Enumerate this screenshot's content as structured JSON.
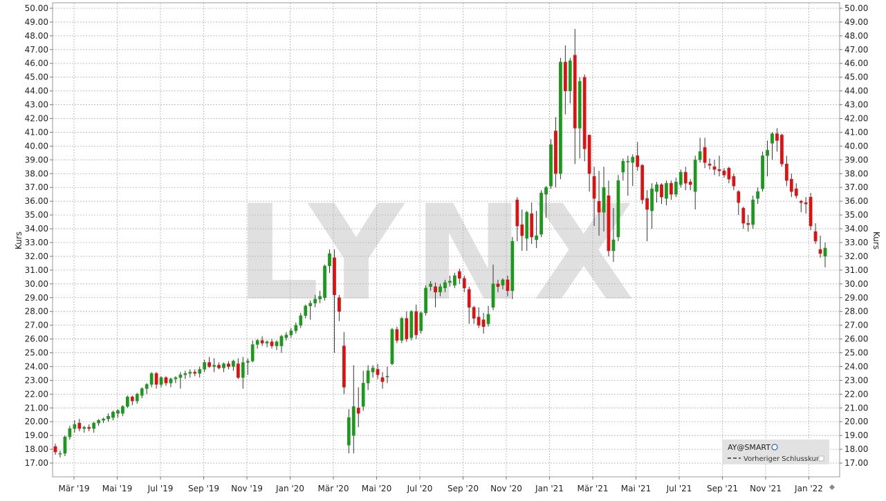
{
  "chart_data": {
    "type": "candlestick",
    "watermark": "LYNX",
    "ylabel_left": "Kurs",
    "ylabel_right": "Kurs",
    "ylim": [
      16.0,
      50.4
    ],
    "yticks": [
      "17.00",
      "18.00",
      "19.00",
      "20.00",
      "21.00",
      "22.00",
      "23.00",
      "24.00",
      "25.00",
      "26.00",
      "27.00",
      "28.00",
      "29.00",
      "30.00",
      "31.00",
      "32.00",
      "33.00",
      "34.00",
      "35.00",
      "36.00",
      "37.00",
      "38.00",
      "39.00",
      "40.00",
      "41.00",
      "42.00",
      "43.00",
      "44.00",
      "45.00",
      "46.00",
      "47.00",
      "48.00",
      "49.00",
      "50.00"
    ],
    "xticks": [
      "Mär '19",
      "Mai '19",
      "Jul '19",
      "Sep '19",
      "Nov '19",
      "Jan '20",
      "Mär '20",
      "Mai '20",
      "Jul '20",
      "Sep '20",
      "Nov '20",
      "Jan '21",
      "Mär '21",
      "Mai '21",
      "Jul '21",
      "Sep '21",
      "Nov '21",
      "Jan '22"
    ],
    "grid": true,
    "legend": {
      "position": "bottom-right",
      "symbol": "AY@SMART",
      "prev_close_label": "Vorheriger Schlusskurs"
    },
    "colors": {
      "up": "#1a9a1a",
      "down": "#e01010",
      "grid": "#b0b0b0",
      "watermark": "#e0e0e0"
    },
    "candles": [
      {
        "o": 18.2,
        "h": 18.4,
        "l": 17.6,
        "c": 17.8
      },
      {
        "o": 17.7,
        "h": 17.9,
        "l": 17.4,
        "c": 17.7
      },
      {
        "o": 17.7,
        "h": 19.0,
        "l": 17.5,
        "c": 18.9
      },
      {
        "o": 18.9,
        "h": 19.7,
        "l": 18.7,
        "c": 19.5
      },
      {
        "o": 19.5,
        "h": 20.1,
        "l": 19.2,
        "c": 19.8
      },
      {
        "o": 19.9,
        "h": 20.2,
        "l": 19.3,
        "c": 19.5
      },
      {
        "o": 19.5,
        "h": 19.7,
        "l": 19.2,
        "c": 19.6
      },
      {
        "o": 19.6,
        "h": 19.8,
        "l": 19.3,
        "c": 19.5
      },
      {
        "o": 19.5,
        "h": 20.0,
        "l": 19.2,
        "c": 19.9
      },
      {
        "o": 19.9,
        "h": 20.2,
        "l": 19.7,
        "c": 20.1
      },
      {
        "o": 20.1,
        "h": 20.3,
        "l": 19.9,
        "c": 20.2
      },
      {
        "o": 20.2,
        "h": 20.6,
        "l": 20.0,
        "c": 20.4
      },
      {
        "o": 20.3,
        "h": 20.8,
        "l": 20.1,
        "c": 20.7
      },
      {
        "o": 20.6,
        "h": 20.9,
        "l": 20.3,
        "c": 20.8
      },
      {
        "o": 20.6,
        "h": 21.2,
        "l": 20.4,
        "c": 21.1
      },
      {
        "o": 21.1,
        "h": 21.9,
        "l": 21.0,
        "c": 21.8
      },
      {
        "o": 21.8,
        "h": 21.9,
        "l": 21.2,
        "c": 21.5
      },
      {
        "o": 21.5,
        "h": 22.1,
        "l": 21.3,
        "c": 22.0
      },
      {
        "o": 21.9,
        "h": 22.5,
        "l": 21.7,
        "c": 22.4
      },
      {
        "o": 22.4,
        "h": 22.8,
        "l": 22.0,
        "c": 22.7
      },
      {
        "o": 22.7,
        "h": 23.6,
        "l": 22.5,
        "c": 23.5
      },
      {
        "o": 23.5,
        "h": 23.6,
        "l": 22.4,
        "c": 22.7
      },
      {
        "o": 22.7,
        "h": 23.3,
        "l": 22.5,
        "c": 23.2
      },
      {
        "o": 23.2,
        "h": 23.3,
        "l": 22.6,
        "c": 22.8
      },
      {
        "o": 22.8,
        "h": 23.2,
        "l": 22.5,
        "c": 23.1
      },
      {
        "o": 23.1,
        "h": 23.3,
        "l": 22.8,
        "c": 23.2
      },
      {
        "o": 23.2,
        "h": 23.6,
        "l": 22.4,
        "c": 23.4
      },
      {
        "o": 23.4,
        "h": 23.7,
        "l": 23.1,
        "c": 23.5
      },
      {
        "o": 23.5,
        "h": 23.8,
        "l": 23.2,
        "c": 23.6
      },
      {
        "o": 23.6,
        "h": 23.8,
        "l": 23.3,
        "c": 23.5
      },
      {
        "o": 23.5,
        "h": 24.0,
        "l": 23.2,
        "c": 23.8
      },
      {
        "o": 23.8,
        "h": 24.5,
        "l": 23.6,
        "c": 24.3
      },
      {
        "o": 24.3,
        "h": 24.7,
        "l": 23.9,
        "c": 24.0
      },
      {
        "o": 24.0,
        "h": 24.6,
        "l": 23.6,
        "c": 24.1
      },
      {
        "o": 24.1,
        "h": 24.3,
        "l": 23.8,
        "c": 23.9
      },
      {
        "o": 23.9,
        "h": 24.3,
        "l": 23.6,
        "c": 24.2
      },
      {
        "o": 24.2,
        "h": 24.4,
        "l": 23.8,
        "c": 24.0
      },
      {
        "o": 24.0,
        "h": 24.5,
        "l": 23.7,
        "c": 24.4
      },
      {
        "o": 24.2,
        "h": 24.6,
        "l": 23.1,
        "c": 23.2
      },
      {
        "o": 23.2,
        "h": 24.7,
        "l": 22.4,
        "c": 24.3
      },
      {
        "o": 24.3,
        "h": 24.6,
        "l": 23.4,
        "c": 24.4
      },
      {
        "o": 24.4,
        "h": 25.9,
        "l": 24.3,
        "c": 25.6
      },
      {
        "o": 25.6,
        "h": 26.0,
        "l": 25.3,
        "c": 25.9
      },
      {
        "o": 25.9,
        "h": 26.2,
        "l": 25.5,
        "c": 25.7
      },
      {
        "o": 25.7,
        "h": 25.9,
        "l": 25.4,
        "c": 25.8
      },
      {
        "o": 25.8,
        "h": 26.0,
        "l": 25.3,
        "c": 25.5
      },
      {
        "o": 25.5,
        "h": 25.9,
        "l": 25.2,
        "c": 25.8
      },
      {
        "o": 25.5,
        "h": 26.3,
        "l": 25.0,
        "c": 26.2
      },
      {
        "o": 26.1,
        "h": 26.5,
        "l": 25.9,
        "c": 26.3
      },
      {
        "o": 26.3,
        "h": 26.8,
        "l": 26.1,
        "c": 26.6
      },
      {
        "o": 26.6,
        "h": 27.2,
        "l": 26.4,
        "c": 27.0
      },
      {
        "o": 27.0,
        "h": 27.9,
        "l": 26.8,
        "c": 27.7
      },
      {
        "o": 27.7,
        "h": 28.5,
        "l": 27.5,
        "c": 28.4
      },
      {
        "o": 28.4,
        "h": 28.8,
        "l": 27.4,
        "c": 28.6
      },
      {
        "o": 28.6,
        "h": 29.2,
        "l": 28.3,
        "c": 28.9
      },
      {
        "o": 28.9,
        "h": 29.5,
        "l": 28.6,
        "c": 29.1
      },
      {
        "o": 29.0,
        "h": 31.4,
        "l": 28.8,
        "c": 31.3
      },
      {
        "o": 31.3,
        "h": 32.5,
        "l": 30.8,
        "c": 32.2
      },
      {
        "o": 31.9,
        "h": 32.5,
        "l": 25.0,
        "c": 29.2
      },
      {
        "o": 29.0,
        "h": 29.2,
        "l": 27.3,
        "c": 28.0
      },
      {
        "o": 25.5,
        "h": 26.5,
        "l": 22.0,
        "c": 22.5
      },
      {
        "o": 18.3,
        "h": 20.9,
        "l": 17.7,
        "c": 20.3
      },
      {
        "o": 19.0,
        "h": 24.1,
        "l": 17.7,
        "c": 21.1
      },
      {
        "o": 21.0,
        "h": 22.5,
        "l": 19.6,
        "c": 20.6
      },
      {
        "o": 21.1,
        "h": 23.7,
        "l": 20.8,
        "c": 22.8
      },
      {
        "o": 22.8,
        "h": 24.1,
        "l": 22.3,
        "c": 23.7
      },
      {
        "o": 23.6,
        "h": 24.1,
        "l": 23.2,
        "c": 23.9
      },
      {
        "o": 23.8,
        "h": 24.2,
        "l": 23.1,
        "c": 23.4
      },
      {
        "o": 23.2,
        "h": 23.6,
        "l": 22.4,
        "c": 22.9
      },
      {
        "o": 23.3,
        "h": 24.0,
        "l": 22.8,
        "c": 23.3
      },
      {
        "o": 24.2,
        "h": 26.8,
        "l": 24.1,
        "c": 26.7
      },
      {
        "o": 26.7,
        "h": 26.9,
        "l": 25.7,
        "c": 25.9
      },
      {
        "o": 25.9,
        "h": 27.6,
        "l": 25.7,
        "c": 27.5
      },
      {
        "o": 27.5,
        "h": 28.0,
        "l": 25.8,
        "c": 26.0
      },
      {
        "o": 26.1,
        "h": 28.1,
        "l": 25.9,
        "c": 28.0
      },
      {
        "o": 28.0,
        "h": 28.5,
        "l": 26.0,
        "c": 26.3
      },
      {
        "o": 26.6,
        "h": 28.0,
        "l": 26.4,
        "c": 27.9
      },
      {
        "o": 27.9,
        "h": 29.9,
        "l": 27.7,
        "c": 29.7
      },
      {
        "o": 29.8,
        "h": 30.2,
        "l": 29.5,
        "c": 30.0
      },
      {
        "o": 29.8,
        "h": 30.1,
        "l": 28.3,
        "c": 29.4
      },
      {
        "o": 29.4,
        "h": 30.0,
        "l": 29.1,
        "c": 29.8
      },
      {
        "o": 29.7,
        "h": 30.3,
        "l": 29.4,
        "c": 30.1
      },
      {
        "o": 30.1,
        "h": 30.6,
        "l": 29.8,
        "c": 30.2
      },
      {
        "o": 29.9,
        "h": 30.8,
        "l": 29.7,
        "c": 30.6
      },
      {
        "o": 30.9,
        "h": 31.1,
        "l": 30.0,
        "c": 30.4
      },
      {
        "o": 30.4,
        "h": 30.6,
        "l": 29.4,
        "c": 29.7
      },
      {
        "o": 29.6,
        "h": 29.8,
        "l": 27.1,
        "c": 28.3
      },
      {
        "o": 28.3,
        "h": 28.4,
        "l": 27.1,
        "c": 27.5
      },
      {
        "o": 27.6,
        "h": 28.3,
        "l": 26.8,
        "c": 27.0
      },
      {
        "o": 27.4,
        "h": 27.9,
        "l": 26.4,
        "c": 26.9
      },
      {
        "o": 27.1,
        "h": 28.4,
        "l": 26.9,
        "c": 27.8
      },
      {
        "o": 28.3,
        "h": 31.4,
        "l": 28.1,
        "c": 30.0
      },
      {
        "o": 30.0,
        "h": 30.3,
        "l": 29.4,
        "c": 29.8
      },
      {
        "o": 29.9,
        "h": 30.4,
        "l": 29.6,
        "c": 30.3
      },
      {
        "o": 30.3,
        "h": 30.6,
        "l": 29.1,
        "c": 29.5
      },
      {
        "o": 29.5,
        "h": 33.4,
        "l": 28.9,
        "c": 33.1
      },
      {
        "o": 36.1,
        "h": 36.3,
        "l": 33.1,
        "c": 34.2
      },
      {
        "o": 34.3,
        "h": 35.4,
        "l": 32.4,
        "c": 33.5
      },
      {
        "o": 33.3,
        "h": 35.3,
        "l": 32.4,
        "c": 35.2
      },
      {
        "o": 35.1,
        "h": 35.9,
        "l": 32.9,
        "c": 33.4
      },
      {
        "o": 33.2,
        "h": 35.3,
        "l": 32.6,
        "c": 33.5
      },
      {
        "o": 33.6,
        "h": 36.8,
        "l": 33.4,
        "c": 36.6
      },
      {
        "o": 36.5,
        "h": 37.1,
        "l": 34.8,
        "c": 37.0
      },
      {
        "o": 37.1,
        "h": 40.5,
        "l": 36.9,
        "c": 40.1
      },
      {
        "o": 41.1,
        "h": 42.1,
        "l": 37.0,
        "c": 38.0
      },
      {
        "o": 38.0,
        "h": 46.4,
        "l": 37.6,
        "c": 46.1
      },
      {
        "o": 46.1,
        "h": 47.3,
        "l": 42.3,
        "c": 44.0
      },
      {
        "o": 44.0,
        "h": 46.4,
        "l": 43.1,
        "c": 46.2
      },
      {
        "o": 46.6,
        "h": 48.5,
        "l": 38.7,
        "c": 41.3
      },
      {
        "o": 41.3,
        "h": 45.0,
        "l": 39.1,
        "c": 44.7
      },
      {
        "o": 45.0,
        "h": 45.2,
        "l": 38.9,
        "c": 39.8
      },
      {
        "o": 40.8,
        "h": 40.8,
        "l": 36.7,
        "c": 38.0
      },
      {
        "o": 37.8,
        "h": 38.5,
        "l": 34.2,
        "c": 36.2
      },
      {
        "o": 36.0,
        "h": 38.2,
        "l": 33.5,
        "c": 35.2
      },
      {
        "o": 35.2,
        "h": 38.5,
        "l": 33.8,
        "c": 37.0
      },
      {
        "o": 36.4,
        "h": 37.5,
        "l": 32.0,
        "c": 32.4
      },
      {
        "o": 32.4,
        "h": 35.5,
        "l": 31.6,
        "c": 33.2
      },
      {
        "o": 33.4,
        "h": 37.9,
        "l": 33.1,
        "c": 37.5
      },
      {
        "o": 38.1,
        "h": 39.1,
        "l": 37.5,
        "c": 38.9
      },
      {
        "o": 38.9,
        "h": 39.3,
        "l": 36.4,
        "c": 38.9
      },
      {
        "o": 38.8,
        "h": 39.4,
        "l": 37.1,
        "c": 39.2
      },
      {
        "o": 39.3,
        "h": 40.3,
        "l": 38.2,
        "c": 38.5
      },
      {
        "o": 38.6,
        "h": 38.7,
        "l": 35.8,
        "c": 36.1
      },
      {
        "o": 36.2,
        "h": 36.8,
        "l": 33.1,
        "c": 35.4
      },
      {
        "o": 35.3,
        "h": 37.3,
        "l": 34.0,
        "c": 36.9
      },
      {
        "o": 36.7,
        "h": 37.4,
        "l": 35.9,
        "c": 37.2
      },
      {
        "o": 37.2,
        "h": 37.3,
        "l": 35.8,
        "c": 36.3
      },
      {
        "o": 36.2,
        "h": 37.5,
        "l": 35.7,
        "c": 37.3
      },
      {
        "o": 37.3,
        "h": 37.5,
        "l": 36.1,
        "c": 36.5
      },
      {
        "o": 36.5,
        "h": 37.7,
        "l": 36.3,
        "c": 37.4
      },
      {
        "o": 37.2,
        "h": 38.3,
        "l": 37.0,
        "c": 38.1
      },
      {
        "o": 38.1,
        "h": 38.5,
        "l": 36.8,
        "c": 37.3
      },
      {
        "o": 37.4,
        "h": 37.6,
        "l": 36.8,
        "c": 37.2
      },
      {
        "o": 36.7,
        "h": 39.3,
        "l": 35.4,
        "c": 39.0
      },
      {
        "o": 39.0,
        "h": 40.6,
        "l": 38.8,
        "c": 39.6
      },
      {
        "o": 39.9,
        "h": 40.6,
        "l": 38.4,
        "c": 38.8
      },
      {
        "o": 38.7,
        "h": 39.1,
        "l": 38.3,
        "c": 38.6
      },
      {
        "o": 38.5,
        "h": 39.0,
        "l": 37.9,
        "c": 38.3
      },
      {
        "o": 38.3,
        "h": 39.3,
        "l": 37.8,
        "c": 38.2
      },
      {
        "o": 38.2,
        "h": 38.4,
        "l": 37.7,
        "c": 37.9
      },
      {
        "o": 38.4,
        "h": 38.5,
        "l": 37.3,
        "c": 37.6
      },
      {
        "o": 37.8,
        "h": 38.0,
        "l": 36.8,
        "c": 37.1
      },
      {
        "o": 36.7,
        "h": 36.8,
        "l": 35.0,
        "c": 35.9
      },
      {
        "o": 35.5,
        "h": 35.6,
        "l": 34.0,
        "c": 34.4
      },
      {
        "o": 34.4,
        "h": 35.0,
        "l": 33.8,
        "c": 34.3
      },
      {
        "o": 34.3,
        "h": 36.4,
        "l": 34.0,
        "c": 36.1
      },
      {
        "o": 36.2,
        "h": 37.0,
        "l": 35.8,
        "c": 36.7
      },
      {
        "o": 36.9,
        "h": 39.6,
        "l": 36.7,
        "c": 39.3
      },
      {
        "o": 39.3,
        "h": 40.4,
        "l": 37.8,
        "c": 39.7
      },
      {
        "o": 40.2,
        "h": 41.0,
        "l": 39.0,
        "c": 40.9
      },
      {
        "o": 40.9,
        "h": 41.3,
        "l": 39.6,
        "c": 40.4
      },
      {
        "o": 40.8,
        "h": 40.9,
        "l": 38.5,
        "c": 38.7
      },
      {
        "o": 38.7,
        "h": 39.3,
        "l": 37.1,
        "c": 37.5
      },
      {
        "o": 37.6,
        "h": 38.0,
        "l": 36.3,
        "c": 36.7
      },
      {
        "o": 36.9,
        "h": 37.3,
        "l": 36.2,
        "c": 36.4
      },
      {
        "o": 36.0,
        "h": 36.1,
        "l": 35.2,
        "c": 35.9
      },
      {
        "o": 35.9,
        "h": 36.3,
        "l": 35.1,
        "c": 35.8
      },
      {
        "o": 36.3,
        "h": 36.6,
        "l": 33.9,
        "c": 34.2
      },
      {
        "o": 33.8,
        "h": 34.4,
        "l": 32.9,
        "c": 33.1
      },
      {
        "o": 32.5,
        "h": 33.5,
        "l": 31.9,
        "c": 32.2
      },
      {
        "o": 32.0,
        "h": 33.0,
        "l": 31.2,
        "c": 32.6
      }
    ]
  }
}
